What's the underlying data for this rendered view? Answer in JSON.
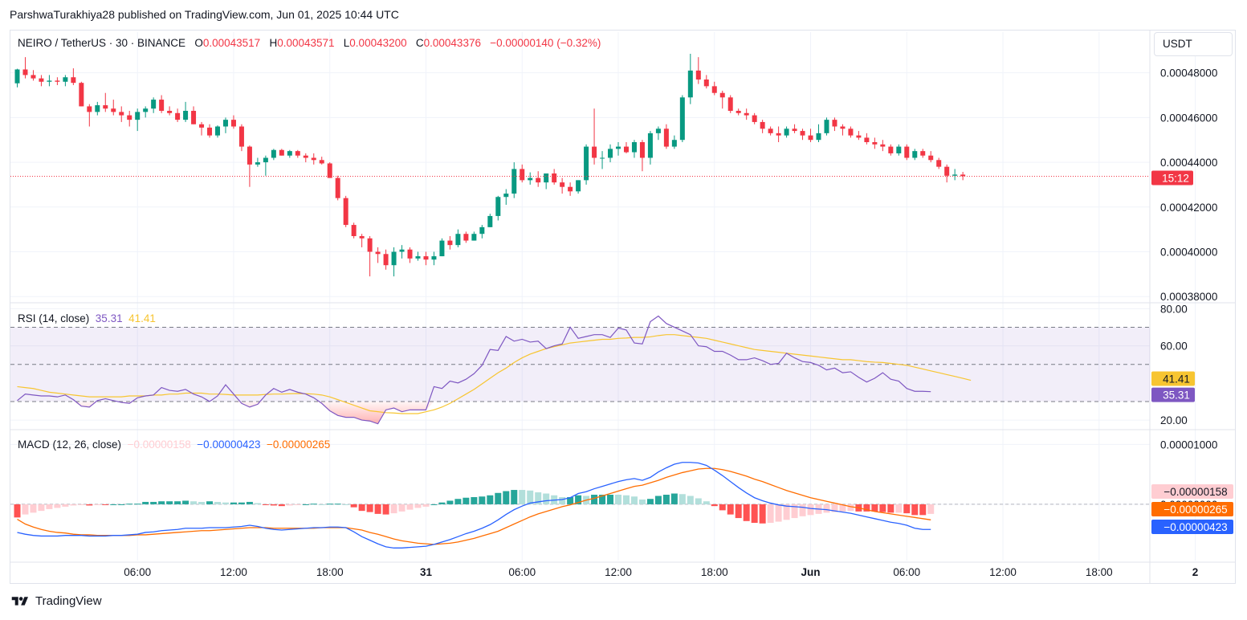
{
  "header": {
    "published": "ParshwaTurakhiya28 published on TradingView.com, Jun 01, 2025 10:44 UTC"
  },
  "footer": {
    "brand": "TradingView",
    "icon": "tradingview-logo-icon"
  },
  "currency_button": "USDT",
  "colors": {
    "up": "#089981",
    "down": "#f23645",
    "rsi": "#7e57c2",
    "rsi_ma": "#f7c531",
    "macd": "#2962ff",
    "signal": "#ff6d00",
    "hist_up_strong": "#26a69a",
    "hist_up_weak": "#b2dfdb",
    "hist_down_strong": "#ff5252",
    "hist_down_weak": "#ffcdd2"
  },
  "legend": {
    "symbol": "NEIRO / TetherUS · 30 · BINANCE",
    "o_label": "O",
    "o": "0.00043517",
    "h_label": "H",
    "h": "0.00043571",
    "l_label": "L",
    "l": "0.00043200",
    "c_label": "C",
    "c": "0.00043376",
    "change": "−0.00000140 (−0.32%)",
    "rsi_title": "RSI (14, close)",
    "rsi_val": "35.31",
    "rsi_ma_val": "41.41",
    "macd_title": "MACD (12, 26, close)",
    "macd_hist_val": "−0.00000158",
    "macd_val": "−0.00000423",
    "signal_val": "−0.00000265"
  },
  "labels": {
    "countdown": "15:12",
    "rsi_ma_label": "41.41",
    "rsi_label": "35.31",
    "hist_label": "−0.00000158",
    "signal_label": "−0.00000265",
    "macd_label": "−0.00000423"
  },
  "chart_data": {
    "type": "candlestick",
    "symbol": "NEIRO / TetherUS",
    "interval": "30",
    "price_axis": {
      "ylim": [
        0.000379,
        0.000491
      ],
      "ticks": [
        "0.00048000",
        "0.00046000",
        "0.00044000",
        "0.00042000",
        "0.00040000",
        "0.00038000"
      ],
      "tick_values": [
        0.00048,
        0.00046,
        0.00044,
        0.00042,
        0.0004,
        0.00038
      ]
    },
    "rsi_axis": {
      "ylim": [
        17,
        81
      ],
      "ticks": [
        "80.00",
        "60.00",
        "20.00"
      ],
      "tick_values": [
        80,
        60,
        20
      ],
      "bands": [
        70,
        50,
        30
      ]
    },
    "macd_axis": {
      "ylim": [
        -9e-06,
        1.18e-05
      ],
      "ticks": [
        "0.00001000",
        "0.00000000"
      ],
      "tick_values": [
        1e-05,
        0.0
      ]
    },
    "time_axis": {
      "labels": [
        "06:00",
        "12:00",
        "18:00",
        "31",
        "06:00",
        "12:00",
        "18:00",
        "Jun",
        "06:00",
        "12:00",
        "18:00",
        "2"
      ],
      "bar_index": [
        15,
        27,
        39,
        51,
        63,
        75,
        87,
        99,
        111,
        123,
        135,
        147
      ]
    },
    "last_price": 0.00043376,
    "candles": [
      [
        0.0004753,
        0.0004818,
        0.0004735,
        0.0004815
      ],
      [
        0.0004815,
        0.000487,
        0.0004775,
        0.000479
      ],
      [
        0.000479,
        0.0004812,
        0.0004765,
        0.0004775
      ],
      [
        0.0004775,
        0.000479,
        0.000474,
        0.000476
      ],
      [
        0.000476,
        0.000479,
        0.000474,
        0.0004765
      ],
      [
        0.0004765,
        0.000478,
        0.0004745,
        0.000476
      ],
      [
        0.000476,
        0.000479,
        0.000474,
        0.000478
      ],
      [
        0.000478,
        0.000482,
        0.0004745,
        0.0004755
      ],
      [
        0.0004755,
        0.000476,
        0.000465,
        0.000465
      ],
      [
        0.000465,
        0.000466,
        0.000456,
        0.0004625
      ],
      [
        0.0004625,
        0.000467,
        0.000461,
        0.0004655
      ],
      [
        0.0004655,
        0.000471,
        0.0004625,
        0.000464
      ],
      [
        0.000464,
        0.000468,
        0.000461,
        0.0004625
      ],
      [
        0.0004625,
        0.000465,
        0.000458,
        0.000461
      ],
      [
        0.000461,
        0.000463,
        0.000456,
        0.000459
      ],
      [
        0.000459,
        0.000464,
        0.000454,
        0.0004625
      ],
      [
        0.0004625,
        0.000465,
        0.00046,
        0.000464
      ],
      [
        0.000464,
        0.000469,
        0.000462,
        0.000468
      ],
      [
        0.000468,
        0.00047,
        0.000462,
        0.000463
      ],
      [
        0.000463,
        0.000465,
        0.000461,
        0.000462
      ],
      [
        0.000462,
        0.000464,
        0.000458,
        0.000459
      ],
      [
        0.000459,
        0.000467,
        0.000458,
        0.000463
      ],
      [
        0.000463,
        0.000465,
        0.000457,
        0.000457
      ],
      [
        0.000457,
        0.000458,
        0.000452,
        0.0004555
      ],
      [
        0.0004555,
        0.000457,
        0.000451,
        0.000452
      ],
      [
        0.000452,
        0.0004565,
        0.000451,
        0.000456
      ],
      [
        0.000456,
        0.00046,
        0.000453,
        0.000459
      ],
      [
        0.000459,
        0.000461,
        0.000455,
        0.000456
      ],
      [
        0.000456,
        0.000457,
        0.000445,
        0.000447
      ],
      [
        0.000447,
        0.0004475,
        0.000429,
        0.000439
      ],
      [
        0.000439,
        0.000442,
        0.000438,
        0.00044
      ],
      [
        0.00044,
        0.000443,
        0.000434,
        0.000442
      ],
      [
        0.000442,
        0.000446,
        0.000441,
        0.0004455
      ],
      [
        0.0004455,
        0.000446,
        0.000443,
        0.000443
      ],
      [
        0.000443,
        0.0004455,
        0.000442,
        0.000445
      ],
      [
        0.000445,
        0.0004455,
        0.000442,
        0.000443
      ],
      [
        0.000443,
        0.000444,
        0.00044,
        0.000442
      ],
      [
        0.000442,
        0.000444,
        0.000439,
        0.000441
      ],
      [
        0.000441,
        0.0004425,
        0.000439,
        0.0004395
      ],
      [
        0.0004395,
        0.00044,
        0.000433,
        0.000433
      ],
      [
        0.000433,
        0.000434,
        0.000423,
        0.000424
      ],
      [
        0.000424,
        0.000425,
        0.000411,
        0.000412
      ],
      [
        0.000412,
        0.000413,
        0.000406,
        0.000407
      ],
      [
        0.000407,
        0.000408,
        0.000402,
        0.000406
      ],
      [
        0.000406,
        0.000407,
        0.000389,
        0.0004
      ],
      [
        0.0004,
        0.000402,
        0.000395,
        0.000399
      ],
      [
        0.000399,
        0.000401,
        0.000392,
        0.000394
      ],
      [
        0.000394,
        0.000402,
        0.000389,
        0.0004
      ],
      [
        0.0004,
        0.000403,
        0.000397,
        0.000401
      ],
      [
        0.000401,
        0.000402,
        0.000395,
        0.000397
      ],
      [
        0.000397,
        0.0004,
        0.000396,
        0.000398
      ],
      [
        0.000398,
        0.0004,
        0.000394,
        0.0003965
      ],
      [
        0.0003965,
        0.0004,
        0.000394,
        0.000398
      ],
      [
        0.000398,
        0.000406,
        0.000398,
        0.000405
      ],
      [
        0.000405,
        0.000407,
        0.000401,
        0.000403
      ],
      [
        0.000403,
        0.00041,
        0.000402,
        0.000408
      ],
      [
        0.000408,
        0.000409,
        0.000404,
        0.000405
      ],
      [
        0.000405,
        0.000409,
        0.000405,
        0.000408
      ],
      [
        0.000408,
        0.000412,
        0.000406,
        0.000411
      ],
      [
        0.000411,
        0.000417,
        0.000411,
        0.000416
      ],
      [
        0.000416,
        0.000425,
        0.000414,
        0.0004245
      ],
      [
        0.0004245,
        0.000428,
        0.000421,
        0.000426
      ],
      [
        0.000426,
        0.00044,
        0.000424,
        0.000437
      ],
      [
        0.000437,
        0.000439,
        0.000431,
        0.000432
      ],
      [
        0.000432,
        0.0004355,
        0.00043,
        0.000433
      ],
      [
        0.000433,
        0.000436,
        0.000429,
        0.000431
      ],
      [
        0.000431,
        0.000435,
        0.000428,
        0.000435
      ],
      [
        0.000435,
        0.000437,
        0.00043,
        0.000431
      ],
      [
        0.000431,
        0.000433,
        0.000426,
        0.000429
      ],
      [
        0.000429,
        0.000431,
        0.000425,
        0.000427
      ],
      [
        0.000427,
        0.000432,
        0.000426,
        0.000432
      ],
      [
        0.000432,
        0.000448,
        0.00043,
        0.000447
      ],
      [
        0.000447,
        0.000464,
        0.000439,
        0.000442
      ],
      [
        0.000442,
        0.000445,
        0.000437,
        0.000442
      ],
      [
        0.000442,
        0.000448,
        0.00044,
        0.000446
      ],
      [
        0.000446,
        0.000449,
        0.000443,
        0.000447
      ],
      [
        0.000447,
        0.000449,
        0.000444,
        0.0004445
      ],
      [
        0.0004445,
        0.00045,
        0.000442,
        0.000449
      ],
      [
        0.000449,
        0.00045,
        0.000436,
        0.000442
      ],
      [
        0.000442,
        0.000454,
        0.000439,
        0.000453
      ],
      [
        0.000453,
        0.000456,
        0.00045,
        0.000455
      ],
      [
        0.000455,
        0.000457,
        0.000446,
        0.000447
      ],
      [
        0.000447,
        0.000452,
        0.000446,
        0.00045
      ],
      [
        0.00045,
        0.00047,
        0.000449,
        0.000469
      ],
      [
        0.000469,
        0.0004885,
        0.000466,
        0.000481
      ],
      [
        0.000481,
        0.000487,
        0.000475,
        0.000477
      ],
      [
        0.000477,
        0.000479,
        0.000473,
        0.000474
      ],
      [
        0.000474,
        0.000476,
        0.00047,
        0.000471
      ],
      [
        0.000471,
        0.000472,
        0.000464,
        0.000469
      ],
      [
        0.000469,
        0.00047,
        0.000462,
        0.000463
      ],
      [
        0.000463,
        0.000464,
        0.000461,
        0.000462
      ],
      [
        0.000462,
        0.000464,
        0.000459,
        0.000461
      ],
      [
        0.000461,
        0.000462,
        0.000457,
        0.000458
      ],
      [
        0.000458,
        0.000459,
        0.000453,
        0.000455
      ],
      [
        0.000455,
        0.000456,
        0.000452,
        0.000453
      ],
      [
        0.000453,
        0.000456,
        0.000449,
        0.000452
      ],
      [
        0.000452,
        0.000456,
        0.000451,
        0.000455
      ],
      [
        0.000455,
        0.000457,
        0.000453,
        0.000454
      ],
      [
        0.000454,
        0.000455,
        0.00045,
        0.000452
      ],
      [
        0.000452,
        0.000455,
        0.000449,
        0.00045
      ],
      [
        0.00045,
        0.000457,
        0.000449,
        0.000453
      ],
      [
        0.000453,
        0.00046,
        0.000452,
        0.000459
      ],
      [
        0.000459,
        0.00046,
        0.000454,
        0.000456
      ],
      [
        0.000456,
        0.000457,
        0.000452,
        0.000455
      ],
      [
        0.000455,
        0.000456,
        0.000451,
        0.000452
      ],
      [
        0.000452,
        0.000454,
        0.00045,
        0.000451
      ],
      [
        0.000451,
        0.000453,
        0.000448,
        0.000449
      ],
      [
        0.000449,
        0.000451,
        0.000446,
        0.000448
      ],
      [
        0.000448,
        0.00045,
        0.000445,
        0.000447
      ],
      [
        0.000447,
        0.000448,
        0.000443,
        0.000444
      ],
      [
        0.000444,
        0.000448,
        0.000443,
        0.000447
      ],
      [
        0.000447,
        0.000448,
        0.000441,
        0.000442
      ],
      [
        0.000442,
        0.000446,
        0.000441,
        0.000445
      ],
      [
        0.000445,
        0.000446,
        0.000442,
        0.000443
      ],
      [
        0.000443,
        0.000445,
        0.00044,
        0.000441
      ],
      [
        0.000441,
        0.000442,
        0.000437,
        0.000438
      ],
      [
        0.000438,
        0.000439,
        0.000431,
        0.000434
      ],
      [
        0.000434,
        0.000437,
        0.000432,
        0.0004345
      ],
      [
        0.0004345,
        0.0004357,
        0.000432,
        0.0004338
      ]
    ],
    "rsi": [
      30.5,
      34,
      33.5,
      33,
      33,
      32.5,
      33.5,
      31,
      27.5,
      27,
      30.5,
      31.5,
      30.5,
      29.5,
      29,
      32,
      33,
      33.5,
      37.5,
      36,
      35.5,
      36.5,
      34,
      32.5,
      30,
      33,
      39,
      34,
      29,
      27,
      28.5,
      33.5,
      37,
      35,
      36.5,
      35,
      34,
      32,
      29,
      25,
      22.5,
      21.5,
      21.5,
      20,
      19.5,
      18,
      25.5,
      26.5,
      24.5,
      25.5,
      25.5,
      25.5,
      38,
      37,
      41,
      40,
      42,
      45,
      49.5,
      58,
      57.5,
      65,
      62.5,
      63.5,
      62,
      62.5,
      58.5,
      60,
      61,
      70,
      64,
      65,
      66,
      66,
      64.5,
      69.5,
      68.5,
      61.5,
      61,
      73,
      76,
      72,
      70,
      68,
      66,
      60,
      59.5,
      57,
      57,
      55,
      52.5,
      52.5,
      53.5,
      52,
      50,
      50.5,
      56,
      53.5,
      51.5,
      51,
      49.5,
      47,
      48,
      45.5,
      46,
      43,
      40.5,
      42.5,
      45.5,
      42,
      41,
      37,
      35.5,
      35.5,
      35.3
    ],
    "rsi_ma": [
      38,
      37.5,
      37,
      36,
      35,
      34.5,
      34,
      33.5,
      33,
      32.5,
      32.5,
      32.5,
      32.5,
      32.5,
      33,
      33,
      33,
      33.5,
      33.5,
      34,
      34,
      34.5,
      34.5,
      34.5,
      34,
      34,
      33.8,
      33.5,
      33.5,
      33.5,
      33.5,
      33.8,
      34,
      34,
      34.2,
      34.3,
      34.2,
      34,
      33.5,
      32.5,
      31,
      29.5,
      28,
      26.5,
      25,
      24.5,
      24,
      23.8,
      23.5,
      23.5,
      23.5,
      24.5,
      25.5,
      27,
      29,
      31.5,
      34,
      36.5,
      39.5,
      42.5,
      45.5,
      48,
      51,
      53.5,
      55.5,
      57,
      58.5,
      59.5,
      60.5,
      61.5,
      62,
      62.5,
      63,
      63.5,
      63.5,
      64,
      64.2,
      64.5,
      64.5,
      64.8,
      65.5,
      66,
      66,
      65.5,
      65,
      64.5,
      64,
      63,
      62,
      61,
      60,
      59,
      58,
      57.5,
      57,
      56.5,
      56,
      55.5,
      55,
      54.5,
      54,
      53.5,
      53,
      52.5,
      52.5,
      52,
      51.5,
      51.2,
      51,
      50.5,
      50,
      49.5,
      48.5,
      47.5,
      46.5,
      45.5,
      44.5,
      43.5,
      42.5,
      41.41
    ],
    "macd": [
      -4.7e-06,
      -5e-06,
      -5.2e-06,
      -5.3e-06,
      -5.3e-06,
      -5.3e-06,
      -5.2e-06,
      -5.2e-06,
      -5.2e-06,
      -5.3e-06,
      -5.3e-06,
      -5.3e-06,
      -5.2e-06,
      -5.2e-06,
      -5.1e-06,
      -5e-06,
      -4.7e-06,
      -4.6e-06,
      -4.4e-06,
      -4.3e-06,
      -4.2e-06,
      -4e-06,
      -4e-06,
      -4e-06,
      -3.9e-06,
      -3.9e-06,
      -3.9e-06,
      -3.8e-06,
      -3.7e-06,
      -3.5e-06,
      -3.7e-06,
      -4e-06,
      -4.2e-06,
      -4.3e-06,
      -4.2e-06,
      -4.1e-06,
      -4e-06,
      -3.9e-06,
      -3.9e-06,
      -3.8e-06,
      -3.8e-06,
      -3.9e-06,
      -4.6e-06,
      -5.4e-06,
      -6e-06,
      -6.6e-06,
      -7.1e-06,
      -7.3e-06,
      -7.3e-06,
      -7.2e-06,
      -7.1e-06,
      -7e-06,
      -6.7e-06,
      -6.3e-06,
      -5.9e-06,
      -5.4e-06,
      -4.9e-06,
      -4.5e-06,
      -4e-06,
      -3.4e-06,
      -2.6e-06,
      -1.7e-06,
      -9e-07,
      -3e-07,
      2e-07,
      4e-07,
      6e-07,
      7e-07,
      8e-07,
      1.1e-06,
      1.8e-06,
      2.1e-06,
      2.6e-06,
      3e-06,
      3.4e-06,
      3.8e-06,
      4.1e-06,
      4.3e-06,
      4e-06,
      4.5e-06,
      5.4e-06,
      6.1e-06,
      6.7e-06,
      7e-06,
      7e-06,
      6.9e-06,
      6.5e-06,
      5.7e-06,
      4.8e-06,
      3.8e-06,
      2.8e-06,
      1.9e-06,
      1.1e-06,
      6e-07,
      2e-07,
      -1e-07,
      -3e-07,
      -4e-07,
      -5e-07,
      -7e-07,
      -8e-07,
      -9e-07,
      -1.1e-06,
      -1.3e-06,
      -1.5e-06,
      -1.8e-06,
      -2.1e-06,
      -2.4e-06,
      -2.7e-06,
      -3e-06,
      -3.2e-06,
      -3.5e-06,
      -4e-06,
      -4.2e-06,
      -4.2e-06
    ],
    "signal": [
      -2.5e-06,
      -3.3e-06,
      -3.8e-06,
      -4.2e-06,
      -4.5e-06,
      -4.7e-06,
      -4.8e-06,
      -5e-06,
      -5.1e-06,
      -5.1e-06,
      -5.2e-06,
      -5.2e-06,
      -5.2e-06,
      -5.2e-06,
      -5.2e-06,
      -5.1e-06,
      -5.1e-06,
      -5e-06,
      -4.9e-06,
      -4.8e-06,
      -4.7e-06,
      -4.6e-06,
      -4.5e-06,
      -4.4e-06,
      -4.4e-06,
      -4.3e-06,
      -4.2e-06,
      -4.1e-06,
      -4e-06,
      -3.9e-06,
      -3.9e-06,
      -3.9e-06,
      -4e-06,
      -4e-06,
      -4e-06,
      -4e-06,
      -4e-06,
      -4e-06,
      -3.9e-06,
      -3.9e-06,
      -3.9e-06,
      -3.9e-06,
      -4.1e-06,
      -4.3e-06,
      -4.7e-06,
      -5e-06,
      -5.4e-06,
      -5.8e-06,
      -6.1e-06,
      -6.3e-06,
      -6.5e-06,
      -6.6e-06,
      -6.7e-06,
      -6.6e-06,
      -6.5e-06,
      -6.3e-06,
      -6e-06,
      -5.7e-06,
      -5.3e-06,
      -4.9e-06,
      -4.5e-06,
      -3.9e-06,
      -3.3e-06,
      -2.7e-06,
      -2.1e-06,
      -1.6e-06,
      -1.2e-06,
      -8e-07,
      -4e-07,
      -1e-07,
      3e-07,
      7e-07,
      1e-06,
      1.4e-06,
      1.8e-06,
      2.2e-06,
      2.6e-06,
      3e-06,
      3.2e-06,
      3.6e-06,
      4e-06,
      4.5e-06,
      4.9e-06,
      5.3e-06,
      5.6e-06,
      5.9e-06,
      6e-06,
      6e-06,
      5.8e-06,
      5.5e-06,
      5.1e-06,
      4.7e-06,
      4.2e-06,
      3.8e-06,
      3.3e-06,
      2.8e-06,
      2.3e-06,
      1.9e-06,
      1.5e-06,
      1.1e-06,
      8e-07,
      5e-07,
      2e-07,
      -1e-07,
      -4e-07,
      -6e-07,
      -9e-07,
      -1.2e-06,
      -1.4e-06,
      -1.6e-06,
      -1.8e-06,
      -2e-06,
      -2.2e-06,
      -2.4e-06,
      -2.6e-06
    ]
  }
}
